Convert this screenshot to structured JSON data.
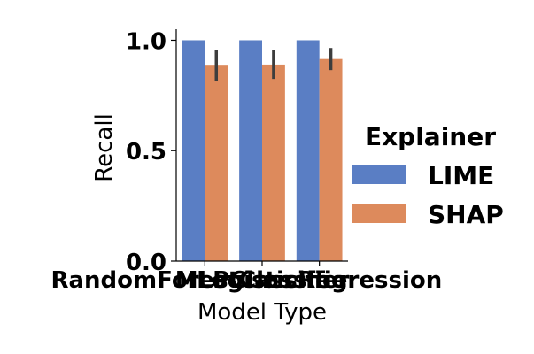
{
  "chart_data": {
    "type": "bar",
    "xlabel": "Model Type",
    "ylabel": "Recall",
    "ylim": [
      0,
      1.05
    ],
    "yticks": [
      0.0,
      0.5,
      1.0
    ],
    "ytick_labels": [
      "0.0",
      "0.5",
      "1.0"
    ],
    "categories": [
      "RandomForestClassifier",
      "MLPClassifier",
      "LogisticRegression"
    ],
    "series": [
      {
        "name": "LIME",
        "values": [
          1.0,
          1.0,
          1.0
        ],
        "err_low": [
          1.0,
          1.0,
          1.0
        ],
        "err_high": [
          1.0,
          1.0,
          1.0
        ],
        "color": "#5a7ec4"
      },
      {
        "name": "SHAP",
        "values": [
          0.885,
          0.89,
          0.915
        ],
        "err_low": [
          0.815,
          0.825,
          0.865
        ],
        "err_high": [
          0.955,
          0.955,
          0.965
        ],
        "color": "#dd8a5c"
      }
    ],
    "legend": {
      "title": "Explainer",
      "placement": "right"
    },
    "grid": false
  }
}
